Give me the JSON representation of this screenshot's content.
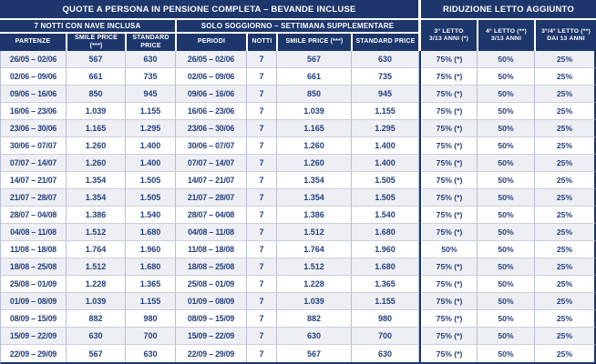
{
  "header": {
    "main_left": "QUOTE A PERSONA IN PENSIONE COMPLETA – BEVANDE INCLUSE",
    "main_right": "RIDUZIONE LETTO AGGIUNTO",
    "group_left": "7 NOTTI CON NAVE INCLUSA",
    "group_right": "SOLO SOGGIORNO – SETTIMANA SUPPLEMENTARE",
    "col_partenze": "PARTENZE",
    "col_smile_left": "SMILE PRICE (***)",
    "col_standard_left": "STANDARD PRICE",
    "col_periodi": "PERIODI",
    "col_notti": "NOTTI",
    "col_smile_mid": "SMILE PRICE (***)",
    "col_standard_mid": "STANDARD PRICE",
    "col_letto3": "3° LETTO\n3/13 ANNI (*)",
    "col_letto4": "4° LETTO (**)\n3/13 ANNI",
    "col_letto34": "3°/4° LETTO (**)\nDAI 13 ANNI"
  },
  "colors": {
    "navy": "#1d366b",
    "body_text": "#24407c",
    "stripe": "#edeff4",
    "grid_line": "#b6c0d3"
  },
  "chart_data": {
    "type": "table",
    "title": "QUOTE A PERSONA IN PENSIONE COMPLETA – BEVANDE INCLUSE / RIDUZIONE LETTO AGGIUNTO",
    "columns": [
      "PARTENZE",
      "SMILE PRICE (***)",
      "STANDARD PRICE",
      "PERIODI",
      "NOTTI",
      "SMILE PRICE (***)",
      "STANDARD PRICE",
      "3° LETTO 3/13 ANNI (*)",
      "4° LETTO (**) 3/13 ANNI",
      "3°/4° LETTO (**) DAI 13 ANNI"
    ]
  },
  "rows": [
    {
      "partenze": "26/05 – 02/06",
      "smile_nave": "567",
      "standard_nave": "630",
      "periodo": "26/05 – 02/06",
      "notti": "7",
      "smile_sogg": "567",
      "standard_sogg": "630",
      "letto3": "75% (*)",
      "letto4": "50%",
      "letto34": "25%"
    },
    {
      "partenze": "02/06 – 09/06",
      "smile_nave": "661",
      "standard_nave": "735",
      "periodo": "02/06 – 09/06",
      "notti": "7",
      "smile_sogg": "661",
      "standard_sogg": "735",
      "letto3": "75% (*)",
      "letto4": "50%",
      "letto34": "25%"
    },
    {
      "partenze": "09/06 – 16/06",
      "smile_nave": "850",
      "standard_nave": "945",
      "periodo": "09/06 – 16/06",
      "notti": "7",
      "smile_sogg": "850",
      "standard_sogg": "945",
      "letto3": "75% (*)",
      "letto4": "50%",
      "letto34": "25%"
    },
    {
      "partenze": "16/06 – 23/06",
      "smile_nave": "1.039",
      "standard_nave": "1.155",
      "periodo": "16/06 – 23/06",
      "notti": "7",
      "smile_sogg": "1.039",
      "standard_sogg": "1.155",
      "letto3": "75% (*)",
      "letto4": "50%",
      "letto34": "25%"
    },
    {
      "partenze": "23/06 – 30/06",
      "smile_nave": "1.165",
      "standard_nave": "1.295",
      "periodo": "23/06 – 30/06",
      "notti": "7",
      "smile_sogg": "1.165",
      "standard_sogg": "1.295",
      "letto3": "75% (*)",
      "letto4": "50%",
      "letto34": "25%"
    },
    {
      "partenze": "30/06 – 07/07",
      "smile_nave": "1.260",
      "standard_nave": "1.400",
      "periodo": "30/06 – 07/07",
      "notti": "7",
      "smile_sogg": "1.260",
      "standard_sogg": "1.400",
      "letto3": "75% (*)",
      "letto4": "50%",
      "letto34": "25%"
    },
    {
      "partenze": "07/07 – 14/07",
      "smile_nave": "1.260",
      "standard_nave": "1.400",
      "periodo": "07/07 – 14/07",
      "notti": "7",
      "smile_sogg": "1.260",
      "standard_sogg": "1.400",
      "letto3": "75% (*)",
      "letto4": "50%",
      "letto34": "25%"
    },
    {
      "partenze": "14/07 – 21/07",
      "smile_nave": "1.354",
      "standard_nave": "1.505",
      "periodo": "14/07 – 21/07",
      "notti": "7",
      "smile_sogg": "1.354",
      "standard_sogg": "1.505",
      "letto3": "75% (*)",
      "letto4": "50%",
      "letto34": "25%"
    },
    {
      "partenze": "21/07 – 28/07",
      "smile_nave": "1.354",
      "standard_nave": "1.505",
      "periodo": "21/07 – 28/07",
      "notti": "7",
      "smile_sogg": "1.354",
      "standard_sogg": "1.505",
      "letto3": "75% (*)",
      "letto4": "50%",
      "letto34": "25%"
    },
    {
      "partenze": "28/07 – 04/08",
      "smile_nave": "1.386",
      "standard_nave": "1.540",
      "periodo": "28/07 – 04/08",
      "notti": "7",
      "smile_sogg": "1.386",
      "standard_sogg": "1.540",
      "letto3": "75% (*)",
      "letto4": "50%",
      "letto34": "25%"
    },
    {
      "partenze": "04/08 – 11/08",
      "smile_nave": "1.512",
      "standard_nave": "1.680",
      "periodo": "04/08 – 11/08",
      "notti": "7",
      "smile_sogg": "1.512",
      "standard_sogg": "1.680",
      "letto3": "75% (*)",
      "letto4": "50%",
      "letto34": "25%"
    },
    {
      "partenze": "11/08 – 18/08",
      "smile_nave": "1.764",
      "standard_nave": "1.960",
      "periodo": "11/08 – 18/08",
      "notti": "7",
      "smile_sogg": "1.764",
      "standard_sogg": "1.960",
      "letto3": "50%",
      "letto4": "50%",
      "letto34": "25%"
    },
    {
      "partenze": "18/08 – 25/08",
      "smile_nave": "1.512",
      "standard_nave": "1.680",
      "periodo": "18/08 – 25/08",
      "notti": "7",
      "smile_sogg": "1.512",
      "standard_sogg": "1.680",
      "letto3": "75% (*)",
      "letto4": "50%",
      "letto34": "25%"
    },
    {
      "partenze": "25/08 – 01/09",
      "smile_nave": "1.228",
      "standard_nave": "1.365",
      "periodo": "25/08 – 01/09",
      "notti": "7",
      "smile_sogg": "1.228",
      "standard_sogg": "1.365",
      "letto3": "75% (*)",
      "letto4": "50%",
      "letto34": "25%"
    },
    {
      "partenze": "01/09 – 08/09",
      "smile_nave": "1.039",
      "standard_nave": "1.155",
      "periodo": "01/09 – 08/09",
      "notti": "7",
      "smile_sogg": "1.039",
      "standard_sogg": "1.155",
      "letto3": "75% (*)",
      "letto4": "50%",
      "letto34": "25%"
    },
    {
      "partenze": "08/09 – 15/09",
      "smile_nave": "882",
      "standard_nave": "980",
      "periodo": "08/09 – 15/09",
      "notti": "7",
      "smile_sogg": "882",
      "standard_sogg": "980",
      "letto3": "75% (*)",
      "letto4": "50%",
      "letto34": "25%"
    },
    {
      "partenze": "15/09 – 22/09",
      "smile_nave": "630",
      "standard_nave": "700",
      "periodo": "15/09 – 22/09",
      "notti": "7",
      "smile_sogg": "630",
      "standard_sogg": "700",
      "letto3": "75% (*)",
      "letto4": "50%",
      "letto34": "25%"
    },
    {
      "partenze": "22/09 – 29/09",
      "smile_nave": "567",
      "standard_nave": "630",
      "periodo": "22/09 – 29/09",
      "notti": "7",
      "smile_sogg": "567",
      "standard_sogg": "630",
      "letto3": "75% (*)",
      "letto4": "50%",
      "letto34": "25%"
    }
  ]
}
